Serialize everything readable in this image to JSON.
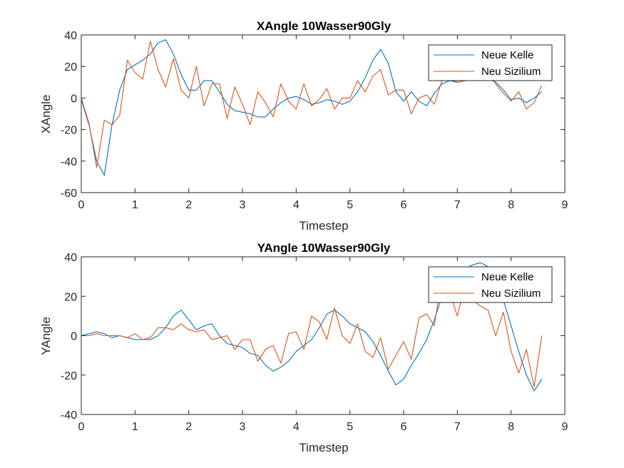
{
  "chart_data": [
    {
      "type": "line",
      "title": "XAngle 10Wasser90Gly",
      "xlabel": "Timestep",
      "ylabel": "XAngle",
      "xlim": [
        0,
        9
      ],
      "ylim": [
        -60,
        40
      ],
      "xticks": [
        0,
        1,
        2,
        3,
        4,
        5,
        6,
        7,
        8,
        9
      ],
      "yticks": [
        -60,
        -40,
        -20,
        0,
        20,
        40
      ],
      "legend_position": "top-right",
      "series": [
        {
          "name": "Neue Kelle",
          "color": "#0072BD",
          "x": [
            0,
            0.143,
            0.286,
            0.429,
            0.571,
            0.714,
            0.857,
            1.0,
            1.143,
            1.286,
            1.429,
            1.571,
            1.714,
            1.857,
            2.0,
            2.143,
            2.286,
            2.429,
            2.571,
            2.714,
            2.857,
            3.0,
            3.143,
            3.286,
            3.429,
            3.571,
            3.714,
            3.857,
            4.0,
            4.143,
            4.286,
            4.429,
            4.571,
            4.714,
            4.857,
            5.0,
            5.143,
            5.286,
            5.429,
            5.571,
            5.714,
            5.857,
            6.0,
            6.143,
            6.286,
            6.429,
            6.571,
            6.714,
            6.857,
            7.0,
            7.143,
            7.286,
            7.429,
            7.571,
            7.714,
            7.857,
            8.0,
            8.143,
            8.286,
            8.429,
            8.571
          ],
          "y": [
            -1,
            -17,
            -40,
            -49,
            -17,
            5,
            18,
            21,
            24,
            28,
            35,
            37,
            28,
            15,
            5,
            5,
            11,
            11,
            4,
            -4,
            -8,
            -9,
            -10,
            -12,
            -12,
            -7,
            -3,
            0,
            1,
            -1,
            -4,
            -3,
            -1,
            -2,
            -4,
            -2,
            4,
            13,
            24,
            31,
            22,
            4,
            -2,
            4,
            -2,
            -5,
            3,
            9,
            11,
            10,
            11,
            12,
            13,
            12,
            10,
            5,
            -1,
            0,
            -3,
            0,
            4
          ],
          "note": ""
        },
        {
          "name": "Neu Sizilium",
          "color": "#D95319",
          "x": [
            0,
            0.143,
            0.286,
            0.429,
            0.571,
            0.714,
            0.857,
            1.0,
            1.143,
            1.286,
            1.429,
            1.571,
            1.714,
            1.857,
            2.0,
            2.143,
            2.286,
            2.429,
            2.571,
            2.714,
            2.857,
            3.0,
            3.143,
            3.286,
            3.429,
            3.571,
            3.714,
            3.857,
            4.0,
            4.143,
            4.286,
            4.429,
            4.571,
            4.714,
            4.857,
            5.0,
            5.143,
            5.286,
            5.429,
            5.571,
            5.714,
            5.857,
            6.0,
            6.143,
            6.286,
            6.429,
            6.571,
            6.714,
            6.857,
            7.0,
            7.143,
            7.286,
            7.429,
            7.571,
            7.714,
            7.857,
            8.0,
            8.143,
            8.286,
            8.429,
            8.571
          ],
          "y": [
            0,
            -16,
            -44,
            -14,
            -17,
            -11,
            24,
            16,
            12,
            36,
            18,
            7,
            25,
            5,
            0,
            20,
            -5,
            9,
            9,
            -13,
            7,
            -4,
            -17,
            4,
            -3,
            -12,
            9,
            -2,
            -7,
            9,
            -5,
            -1,
            6,
            -7,
            0,
            0,
            11,
            4,
            14,
            18,
            2,
            5,
            5,
            -10,
            0,
            2,
            -4,
            11,
            12,
            10,
            11,
            12,
            12,
            21,
            9,
            3,
            -2,
            4,
            -7,
            -3,
            8
          ],
          "note": ""
        }
      ]
    },
    {
      "type": "line",
      "title": "YAngle 10Wasser90Gly",
      "xlabel": "Timestep",
      "ylabel": "YAngle",
      "xlim": [
        0,
        9
      ],
      "ylim": [
        -40,
        40
      ],
      "xticks": [
        0,
        1,
        2,
        3,
        4,
        5,
        6,
        7,
        8,
        9
      ],
      "yticks": [
        -40,
        -20,
        0,
        20,
        40
      ],
      "legend_position": "top-right",
      "series": [
        {
          "name": "Neue Kelle",
          "color": "#0072BD",
          "x": [
            0,
            0.143,
            0.286,
            0.429,
            0.571,
            0.714,
            0.857,
            1.0,
            1.143,
            1.286,
            1.429,
            1.571,
            1.714,
            1.857,
            2.0,
            2.143,
            2.286,
            2.429,
            2.571,
            2.714,
            2.857,
            3.0,
            3.143,
            3.286,
            3.429,
            3.571,
            3.714,
            3.857,
            4.0,
            4.143,
            4.286,
            4.429,
            4.571,
            4.714,
            4.857,
            5.0,
            5.143,
            5.286,
            5.429,
            5.571,
            5.714,
            5.857,
            6.0,
            6.143,
            6.286,
            6.429,
            6.571,
            6.714,
            6.857,
            7.0,
            7.143,
            7.286,
            7.429,
            7.571,
            7.714,
            7.857,
            8.0,
            8.143,
            8.286,
            8.429,
            8.571
          ],
          "y": [
            0,
            1,
            2,
            1,
            -1,
            0,
            -1,
            -2,
            -2,
            -2,
            0,
            4,
            10,
            13,
            8,
            3,
            5,
            6,
            0,
            -4,
            -5,
            -6,
            -9,
            -10,
            -15,
            -18,
            -16,
            -13,
            -8,
            -5,
            -2,
            4,
            11,
            13,
            10,
            6,
            4,
            2,
            -3,
            -10,
            -18,
            -25,
            -22,
            -15,
            -9,
            -2,
            8,
            20,
            28,
            32,
            34,
            36,
            37,
            35,
            28,
            18,
            5,
            -8,
            -20,
            -28,
            -22
          ],
          "note": ""
        },
        {
          "name": "Neu Sizilium",
          "color": "#D95319",
          "x": [
            0,
            0.143,
            0.286,
            0.429,
            0.571,
            0.714,
            0.857,
            1.0,
            1.143,
            1.286,
            1.429,
            1.571,
            1.714,
            1.857,
            2.0,
            2.143,
            2.286,
            2.429,
            2.571,
            2.714,
            2.857,
            3.0,
            3.143,
            3.286,
            3.429,
            3.571,
            3.714,
            3.857,
            4.0,
            4.143,
            4.286,
            4.429,
            4.571,
            4.714,
            4.857,
            5.0,
            5.143,
            5.286,
            5.429,
            5.571,
            5.714,
            5.857,
            6.0,
            6.143,
            6.286,
            6.429,
            6.571,
            6.714,
            6.857,
            7.0,
            7.143,
            7.286,
            7.429,
            7.571,
            7.714,
            7.857,
            8.0,
            8.143,
            8.286,
            8.429,
            8.571
          ],
          "y": [
            0,
            0,
            1,
            0,
            0,
            0,
            -1,
            1,
            -2,
            -1,
            4,
            4,
            3,
            6,
            3,
            2,
            3,
            -2,
            -1,
            0,
            -7,
            -2,
            -2,
            -13,
            -7,
            -5,
            -14,
            1,
            2,
            -7,
            10,
            7,
            -2,
            14,
            0,
            -4,
            6,
            -8,
            -11,
            -1,
            -17,
            -10,
            -3,
            -12,
            9,
            11,
            5,
            30,
            22,
            10,
            26,
            18,
            15,
            13,
            0,
            12,
            -8,
            -19,
            -7,
            -26,
            0
          ],
          "note": ""
        }
      ]
    }
  ]
}
